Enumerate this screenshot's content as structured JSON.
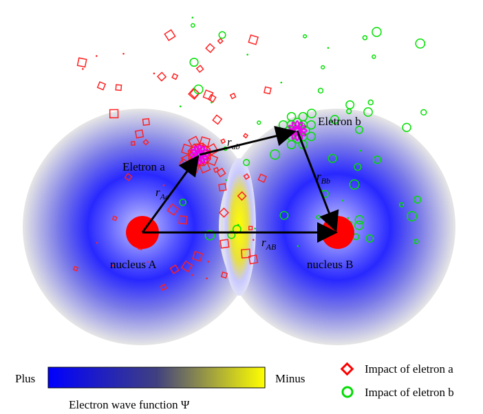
{
  "labels": {
    "electron_a": "Eletron a",
    "electron_b": "Eletron b",
    "r_Aa": {
      "symbol": "r",
      "subscript": "Aa"
    },
    "r_ab": {
      "symbol": "r",
      "subscript": "ab"
    },
    "r_Bb": {
      "symbol": "r",
      "subscript": "Bb"
    },
    "r_AB": {
      "symbol": "r",
      "subscript": "AB"
    },
    "nucleus_A": "nucleus A",
    "nucleus_B": "nucleus B"
  },
  "colorbar": {
    "left": "Plus",
    "right": "Minus",
    "caption": "Electron wave function Ψ"
  },
  "legend": {
    "items": [
      "Impact of eletron a",
      "Impact of eletron b"
    ]
  }
}
